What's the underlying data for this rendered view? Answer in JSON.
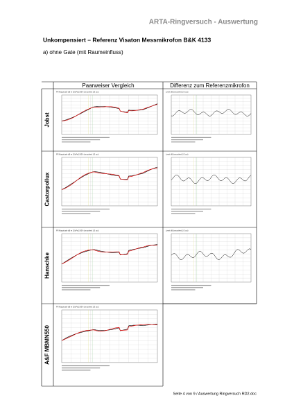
{
  "header": "ARTA-Ringversuch - Auswertung",
  "title": "Unkompensiert – Referenz Visaton Messmikrofon B&K 4133",
  "subtitle": "a) ohne Gate (mit Raumeinfluss)",
  "table": {
    "columns": [
      "Paarweiser Vergleich",
      "Differenz zum Referenzmikrofon"
    ],
    "rows": [
      "Jobst",
      "Castorpollux",
      "Hanschke",
      "A&F MBMN550"
    ]
  },
  "panel_titles": [
    "FR Magnitude dB re 20uPa/2.83V (smoothed 1/3 oct)",
    "Level dB (smoothed 1/3 oct)"
  ],
  "footer": "Seite 4 von 9 / Auswertung Ringversuch RD2.doc"
}
